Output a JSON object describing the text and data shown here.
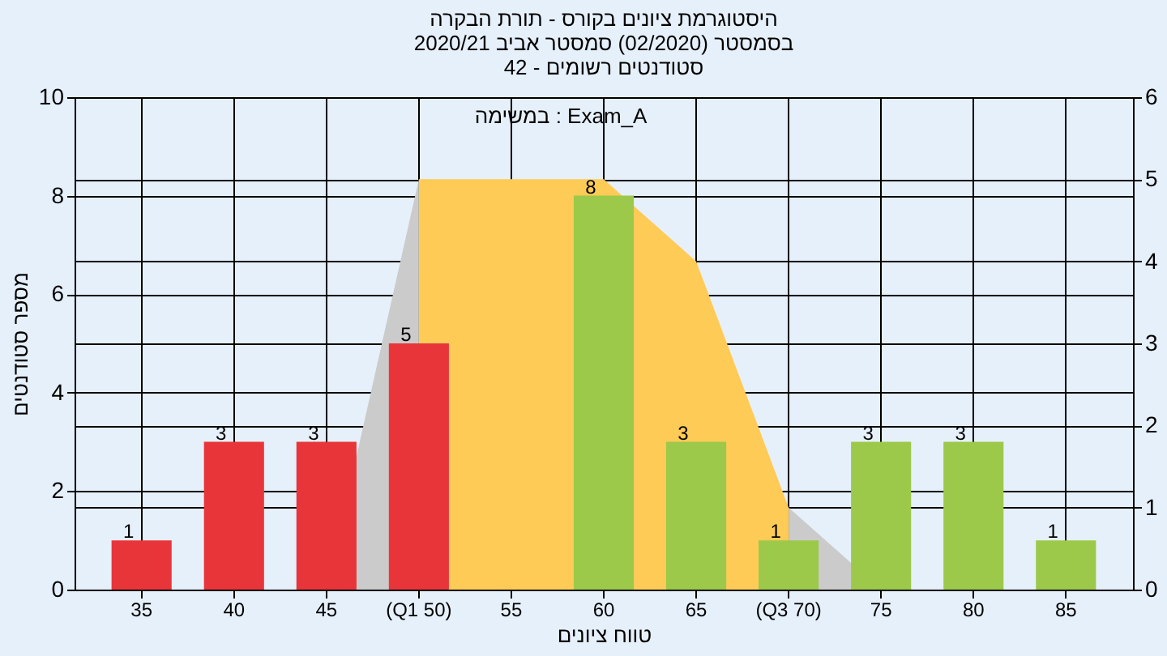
{
  "chart_data": {
    "type": "bar",
    "title": [
      "היסטוגרמת ציונים בקורס - תורת הבקרה",
      "בסמסטר  (02/2020)  סמסטר אביב 2020/21",
      "סטודנטים רשומים - 42"
    ],
    "xlabel": "טווח ציונים",
    "ylabel": "מספר סטודנטים",
    "annotations": [
      "במשימה : Exam_A"
    ],
    "categories": [
      "35",
      "40",
      "45",
      "(Q1 50)",
      "55",
      "60",
      "65",
      "(Q3 70)",
      "75",
      "80",
      "85"
    ],
    "series": [
      {
        "type": "area",
        "axis": "y2",
        "color": "#cbcbcb",
        "values": [
          null,
          null,
          0,
          5,
          null,
          null,
          null,
          null,
          null,
          null,
          null
        ]
      },
      {
        "type": "area",
        "axis": "y2",
        "color": "#cbcbcb",
        "values": [
          null,
          null,
          null,
          null,
          null,
          null,
          null,
          1,
          0,
          null,
          null
        ]
      },
      {
        "type": "area",
        "axis": "y2",
        "color": "#fecb57",
        "values": [
          null,
          null,
          null,
          5,
          5,
          5,
          4,
          1,
          null,
          null,
          null
        ]
      },
      {
        "values": [
          1,
          3,
          3,
          5,
          null,
          8,
          3,
          1,
          3,
          3,
          1
        ],
        "colors": [
          "#e8353a",
          "#e8353a",
          "#e8353a",
          "#e8353a",
          "#9cc94a",
          "#9cc94a",
          "#9cc94a",
          "#9cc94a",
          "#9cc94a",
          "#9cc94a",
          "#9cc94a"
        ],
        "value_labels": [
          "1",
          "3",
          "3",
          "5",
          null,
          "8",
          "3",
          "1",
          "3",
          "3",
          "1"
        ]
      }
    ],
    "ylim": [
      0,
      10
    ],
    "yticks": [
      0,
      2,
      4,
      6,
      8,
      10
    ],
    "y2lim": [
      0,
      6
    ],
    "y2ticks": [
      0,
      1,
      2,
      3,
      4,
      5,
      6
    ],
    "grid": true
  }
}
